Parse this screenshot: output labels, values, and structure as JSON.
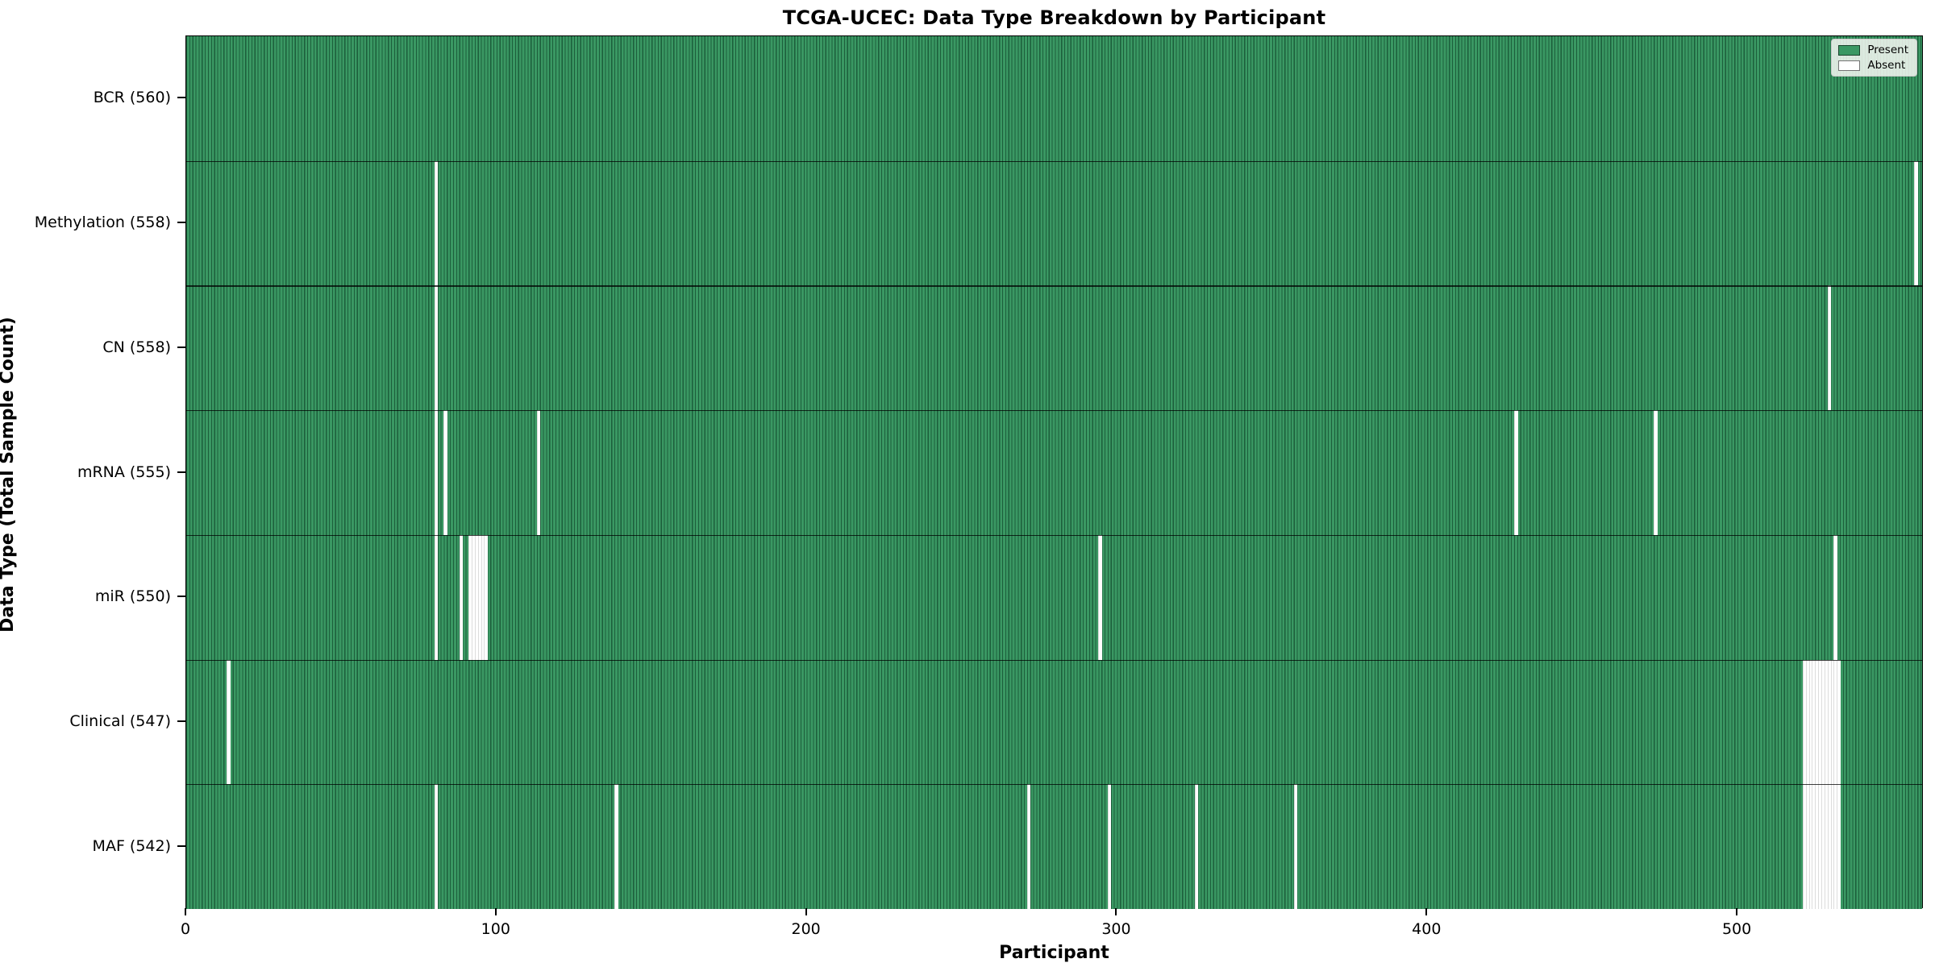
{
  "chart_data": {
    "type": "heatmap",
    "title": "TCGA-UCEC: Data Type Breakdown by Participant",
    "xlabel": "Participant",
    "ylabel": "Data Type (Total Sample Count)",
    "x_ticks": [
      0,
      100,
      200,
      300,
      400,
      500
    ],
    "x_range": [
      0,
      560
    ],
    "n_participants": 560,
    "grid": false,
    "legend_position": "upper right",
    "legend": [
      {
        "label": "Present",
        "color": "#3A9863"
      },
      {
        "label": "Absent",
        "color": "#FFFFFF"
      }
    ],
    "colors": {
      "present_fill": "#3A9863",
      "present_edge": "#1C5E3B",
      "absent_fill": "#FFFFFF"
    },
    "rows": [
      {
        "label": "BCR (560)",
        "data_type": "BCR",
        "total": 560,
        "absent_participants": []
      },
      {
        "label": "Methylation (558)",
        "data_type": "Methylation",
        "total": 558,
        "absent_participants": [
          80,
          557
        ]
      },
      {
        "label": "CN (558)",
        "data_type": "CN",
        "total": 558,
        "absent_participants": [
          80,
          529
        ]
      },
      {
        "label": "mRNA (555)",
        "data_type": "mRNA",
        "total": 555,
        "absent_participants": [
          80,
          83,
          113,
          428,
          473
        ]
      },
      {
        "label": "miR (550)",
        "data_type": "miR",
        "total": 550,
        "absent_participants": [
          80,
          88,
          91,
          92,
          93,
          94,
          95,
          96,
          294,
          531
        ]
      },
      {
        "label": "Clinical (547)",
        "data_type": "Clinical",
        "total": 547,
        "absent_participants": [
          13,
          521,
          522,
          523,
          524,
          525,
          526,
          527,
          528,
          529,
          530,
          531,
          532
        ]
      },
      {
        "label": "MAF (542)",
        "data_type": "MAF",
        "total": 542,
        "absent_participants": [
          80,
          138,
          271,
          297,
          325,
          357,
          521,
          522,
          523,
          524,
          525,
          526,
          527,
          528,
          529,
          530,
          531,
          532
        ]
      }
    ]
  }
}
